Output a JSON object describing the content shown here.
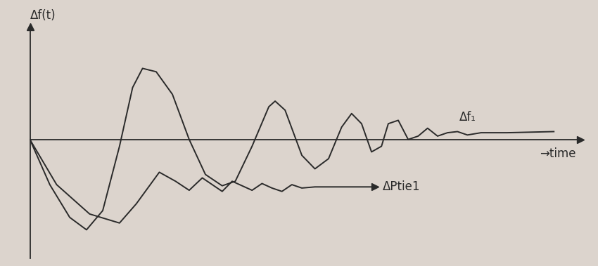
{
  "chart_data": {
    "type": "line",
    "ylabel": "Δf(t)",
    "xlabel": "→time",
    "series": [
      {
        "name": "Δf₁",
        "color": "#2a2a2a",
        "x": [
          0,
          0.38,
          0.76,
          1.08,
          1.39,
          1.71,
          1.96,
          2.15,
          2.41,
          2.72,
          3.04,
          3.35,
          3.67,
          3.92,
          4.24,
          4.56,
          4.68,
          4.87,
          5.19,
          5.44,
          5.7,
          5.95,
          6.14,
          6.33,
          6.52,
          6.71,
          6.84,
          7.03,
          7.22,
          7.41,
          7.59,
          7.78,
          7.97,
          8.16,
          8.35,
          8.61,
          9.11,
          10
        ],
        "values": [
          0,
          -0.4,
          -0.69,
          -0.8,
          -0.63,
          -0.06,
          0.46,
          0.63,
          0.6,
          0.4,
          0,
          -0.31,
          -0.41,
          -0.37,
          -0.06,
          0.29,
          0.34,
          0.26,
          -0.14,
          -0.26,
          -0.17,
          0.11,
          0.23,
          0.14,
          -0.11,
          -0.06,
          0.14,
          0.17,
          0,
          0.03,
          0.1,
          0.03,
          0.06,
          0.07,
          0.04,
          0.06,
          0.06,
          0.07
        ]
      },
      {
        "name": "ΔPtie1",
        "color": "#2a2a2a",
        "x": [
          0,
          0.51,
          1.14,
          1.71,
          2.03,
          2.47,
          2.78,
          3.04,
          3.29,
          3.48,
          3.67,
          3.86,
          4.05,
          4.24,
          4.43,
          4.62,
          4.81,
          5.0,
          5.19,
          5.44,
          6.58
        ],
        "values": [
          0,
          -0.4,
          -0.66,
          -0.74,
          -0.57,
          -0.29,
          -0.37,
          -0.45,
          -0.34,
          -0.4,
          -0.46,
          -0.37,
          -0.41,
          -0.45,
          -0.39,
          -0.43,
          -0.46,
          -0.4,
          -0.43,
          -0.42,
          -0.42
        ]
      }
    ],
    "xlim": [
      0,
      10.5
    ],
    "ylim": [
      -1.05,
      1.0
    ],
    "xticks": [],
    "yticks": [],
    "tick_labels": false,
    "grid": false
  }
}
